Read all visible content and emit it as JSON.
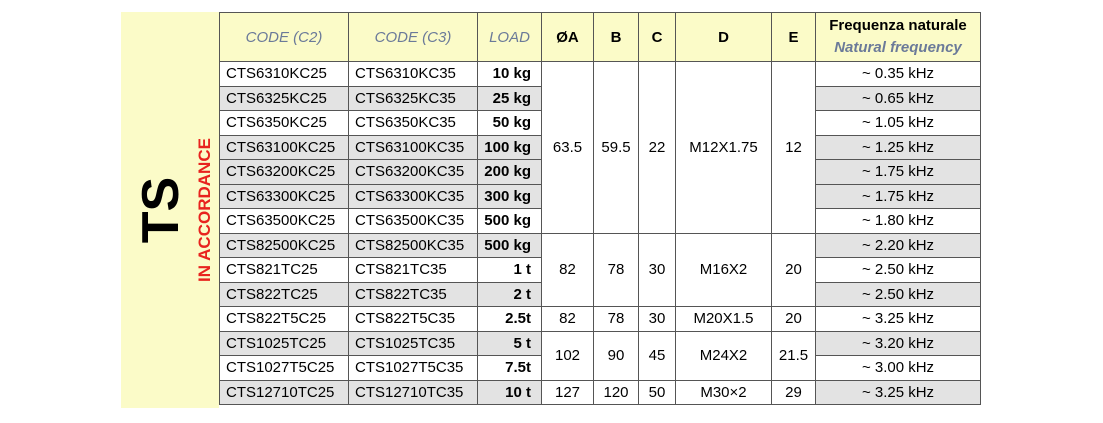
{
  "side": {
    "title": "TS",
    "subtitle": "IN ACCORDANCE"
  },
  "table": {
    "headers": [
      "CODE (C2)",
      "CODE (C3)",
      "LOAD",
      "ØA",
      "B",
      "C",
      "D",
      "E"
    ],
    "freq_header": [
      "Frequenza naturale",
      "Natural frequency"
    ],
    "rows": [
      [
        "CTS6310KC25",
        "CTS6310KC35",
        "10 kg",
        "63.5",
        "59.5",
        "22",
        "M12X1.75",
        "12",
        "~ 0.35 kHz"
      ],
      [
        "CTS6325KC25",
        "CTS6325KC35",
        "25 kg",
        null,
        null,
        null,
        null,
        null,
        "~ 0.65 kHz"
      ],
      [
        "CTS6350KC25",
        "CTS6350KC35",
        "50 kg",
        null,
        null,
        null,
        null,
        null,
        "~ 1.05 kHz"
      ],
      [
        "CTS63100KC25",
        "CTS63100KC35",
        "100 kg",
        null,
        null,
        null,
        null,
        null,
        "~ 1.25 kHz"
      ],
      [
        "CTS63200KC25",
        "CTS63200KC35",
        "200 kg",
        null,
        null,
        null,
        null,
        null,
        "~ 1.75 kHz"
      ],
      [
        "CTS63300KC25",
        "CTS63300KC35",
        "300 kg",
        null,
        null,
        null,
        null,
        null,
        "~ 1.75 kHz"
      ],
      [
        "CTS63500KC25",
        "CTS63500KC35",
        "500 kg",
        null,
        null,
        null,
        null,
        null,
        "~ 1.80 kHz"
      ],
      [
        "CTS82500KC25",
        "CTS82500KC35",
        "500 kg",
        "82",
        "78",
        "30",
        "M16X2",
        "20",
        "~ 2.20 kHz"
      ],
      [
        "CTS821TC25",
        "CTS821TC35",
        "1 t",
        null,
        null,
        null,
        null,
        null,
        "~ 2.50 kHz"
      ],
      [
        "CTS822TC25",
        "CTS822TC35",
        "2 t",
        null,
        null,
        null,
        null,
        null,
        "~ 2.50 kHz"
      ],
      [
        "CTS822T5C25",
        "CTS822T5C35",
        "2.5t",
        "82",
        "78",
        "30",
        "M20X1.5",
        "20",
        "~ 3.25 kHz"
      ],
      [
        "CTS1025TC25",
        "CTS1025TC35",
        "5 t",
        "102",
        "90",
        "45",
        "M24X2",
        "21.5",
        "~ 3.20 kHz"
      ],
      [
        "CTS1027T5C25",
        "CTS1027T5C35",
        "7.5t",
        null,
        null,
        null,
        null,
        null,
        "~ 3.00 kHz"
      ],
      [
        "CTS12710TC25",
        "CTS12710TC35",
        "10 t",
        "127",
        "120",
        "50",
        "M30×2",
        "29",
        "~ 3.25 kHz"
      ]
    ]
  }
}
